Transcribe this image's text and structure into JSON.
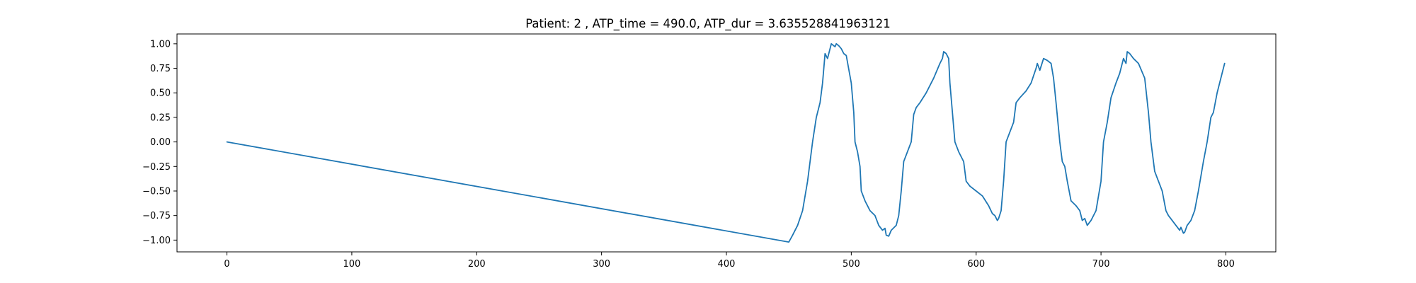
{
  "chart_data": {
    "type": "line",
    "title": "Patient: 2 , ATP_time = 490.0, ATP_dur = 3.635528841963121",
    "xlabel": "",
    "ylabel": "",
    "xlim": [
      -40,
      840
    ],
    "ylim": [
      -1.12,
      1.1
    ],
    "x_ticks": [
      0,
      100,
      200,
      300,
      400,
      500,
      600,
      700,
      800
    ],
    "x_tick_labels": [
      "0",
      "100",
      "200",
      "300",
      "400",
      "500",
      "600",
      "700",
      "800"
    ],
    "y_ticks": [
      1.0,
      0.75,
      0.5,
      0.25,
      0.0,
      -0.25,
      -0.5,
      -0.75,
      -1.0
    ],
    "y_tick_labels": [
      "1.00",
      "0.75",
      "0.50",
      "0.25",
      "0.00",
      "−0.25",
      "−0.50",
      "−0.75",
      "−1.00"
    ],
    "grid": false,
    "series": [
      {
        "color": "#1f77b4",
        "x": [
          0,
          450,
          453,
          457,
          461,
          465,
          469,
          472,
          475,
          477,
          479,
          481,
          484,
          487,
          488,
          490,
          492,
          494,
          496,
          500,
          502,
          503,
          505,
          507,
          508,
          511,
          513,
          515,
          519,
          522,
          525,
          527,
          528,
          530,
          532,
          536,
          538,
          540,
          542,
          545,
          548,
          550,
          552,
          555,
          560,
          566,
          571,
          573,
          574,
          576,
          578,
          579,
          581,
          583,
          586,
          590,
          592,
          595,
          600,
          605,
          610,
          613,
          615,
          617,
          618,
          620,
          622,
          624,
          627,
          630,
          632,
          635,
          640,
          644,
          648,
          649,
          651,
          654,
          657,
          660,
          662,
          664,
          667,
          669,
          671,
          673,
          676,
          680,
          683,
          685,
          687,
          689,
          692,
          696,
          700,
          702,
          705,
          708,
          712,
          715,
          716,
          718,
          720,
          721,
          723,
          726,
          730,
          735,
          738,
          740,
          743,
          746,
          749,
          752,
          754,
          757,
          760,
          763,
          764,
          766,
          767,
          769,
          772,
          775,
          778,
          782,
          785,
          788,
          790,
          793,
          797,
          799
        ],
        "y": [
          0.0,
          -1.02,
          -0.95,
          -0.85,
          -0.7,
          -0.4,
          0.0,
          0.25,
          0.4,
          0.6,
          0.9,
          0.85,
          1.0,
          0.97,
          1.0,
          0.98,
          0.95,
          0.9,
          0.88,
          0.6,
          0.3,
          0.0,
          -0.1,
          -0.25,
          -0.5,
          -0.6,
          -0.65,
          -0.7,
          -0.75,
          -0.85,
          -0.9,
          -0.88,
          -0.95,
          -0.96,
          -0.9,
          -0.85,
          -0.75,
          -0.5,
          -0.2,
          -0.1,
          0.0,
          0.28,
          0.35,
          0.4,
          0.5,
          0.65,
          0.8,
          0.85,
          0.92,
          0.9,
          0.85,
          0.6,
          0.3,
          0.0,
          -0.1,
          -0.2,
          -0.4,
          -0.45,
          -0.5,
          -0.55,
          -0.65,
          -0.73,
          -0.75,
          -0.8,
          -0.78,
          -0.7,
          -0.4,
          0.0,
          0.1,
          0.2,
          0.4,
          0.45,
          0.52,
          0.6,
          0.75,
          0.8,
          0.73,
          0.85,
          0.83,
          0.8,
          0.65,
          0.4,
          0.0,
          -0.2,
          -0.25,
          -0.4,
          -0.6,
          -0.65,
          -0.7,
          -0.8,
          -0.78,
          -0.85,
          -0.8,
          -0.7,
          -0.4,
          0.0,
          0.2,
          0.45,
          0.6,
          0.7,
          0.75,
          0.85,
          0.8,
          0.92,
          0.9,
          0.85,
          0.8,
          0.65,
          0.3,
          0.0,
          -0.3,
          -0.4,
          -0.5,
          -0.7,
          -0.75,
          -0.8,
          -0.85,
          -0.9,
          -0.87,
          -0.93,
          -0.92,
          -0.85,
          -0.8,
          -0.7,
          -0.5,
          -0.2,
          0.0,
          0.25,
          0.3,
          0.5,
          0.7,
          0.8
        ]
      }
    ]
  }
}
